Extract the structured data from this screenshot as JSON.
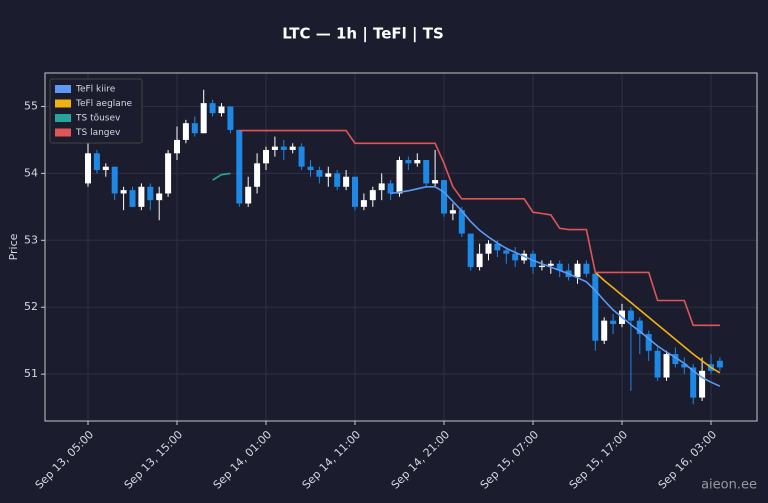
{
  "chart_data": {
    "type": "candlestick",
    "title": "LTC — 1h  |  TeFl  |  TS",
    "ylabel": "Price",
    "watermark": "aieon.ee",
    "x": [
      "Sep 13, 05:00",
      "Sep 13, 06:00",
      "Sep 13, 07:00",
      "Sep 13, 08:00",
      "Sep 13, 09:00",
      "Sep 13, 10:00",
      "Sep 13, 11:00",
      "Sep 13, 12:00",
      "Sep 13, 13:00",
      "Sep 13, 14:00",
      "Sep 13, 15:00",
      "Sep 13, 16:00",
      "Sep 13, 17:00",
      "Sep 13, 18:00",
      "Sep 13, 19:00",
      "Sep 13, 20:00",
      "Sep 13, 21:00",
      "Sep 13, 22:00",
      "Sep 13, 23:00",
      "Sep 14, 00:00",
      "Sep 14, 01:00",
      "Sep 14, 02:00",
      "Sep 14, 03:00",
      "Sep 14, 04:00",
      "Sep 14, 05:00",
      "Sep 14, 06:00",
      "Sep 14, 07:00",
      "Sep 14, 08:00",
      "Sep 14, 09:00",
      "Sep 14, 10:00",
      "Sep 14, 11:00",
      "Sep 14, 12:00",
      "Sep 14, 13:00",
      "Sep 14, 14:00",
      "Sep 14, 15:00",
      "Sep 14, 16:00",
      "Sep 14, 17:00",
      "Sep 14, 18:00",
      "Sep 14, 19:00",
      "Sep 14, 20:00",
      "Sep 14, 21:00",
      "Sep 14, 22:00",
      "Sep 14, 23:00",
      "Sep 15, 00:00",
      "Sep 15, 01:00",
      "Sep 15, 02:00",
      "Sep 15, 03:00",
      "Sep 15, 04:00",
      "Sep 15, 05:00",
      "Sep 15, 06:00",
      "Sep 15, 07:00",
      "Sep 15, 08:00",
      "Sep 15, 09:00",
      "Sep 15, 10:00",
      "Sep 15, 11:00",
      "Sep 15, 12:00",
      "Sep 15, 13:00",
      "Sep 15, 14:00",
      "Sep 15, 15:00",
      "Sep 15, 16:00",
      "Sep 15, 17:00",
      "Sep 15, 18:00",
      "Sep 15, 19:00",
      "Sep 15, 20:00",
      "Sep 15, 21:00",
      "Sep 15, 22:00",
      "Sep 15, 23:00",
      "Sep 16, 00:00",
      "Sep 16, 01:00",
      "Sep 16, 02:00",
      "Sep 16, 03:00",
      "Sep 16, 04:00"
    ],
    "open": [
      53.85,
      54.3,
      54.05,
      54.1,
      53.7,
      53.75,
      53.5,
      53.8,
      53.6,
      53.7,
      54.3,
      54.5,
      54.75,
      54.6,
      55.05,
      54.9,
      55.0,
      54.65,
      53.55,
      53.8,
      54.15,
      54.35,
      54.4,
      54.35,
      54.4,
      54.1,
      54.05,
      53.95,
      54.0,
      53.8,
      53.95,
      53.5,
      53.6,
      53.75,
      53.85,
      53.7,
      54.2,
      54.15,
      54.2,
      53.85,
      53.9,
      53.4,
      53.45,
      53.1,
      52.6,
      52.8,
      52.95,
      52.85,
      52.8,
      52.7,
      52.8,
      52.6,
      52.62,
      52.65,
      52.55,
      52.45,
      52.65,
      52.5,
      51.5,
      51.8,
      51.75,
      51.95,
      51.8,
      51.6,
      51.35,
      50.95,
      51.3,
      51.15,
      51.1,
      50.65,
      51.15,
      51.2
    ],
    "high": [
      54.5,
      54.35,
      54.15,
      54.1,
      53.8,
      53.8,
      53.85,
      53.85,
      53.8,
      54.35,
      54.7,
      54.8,
      54.85,
      55.25,
      55.1,
      55.05,
      55.0,
      54.65,
      53.95,
      54.3,
      54.4,
      54.55,
      54.5,
      54.45,
      54.45,
      54.2,
      54.1,
      54.1,
      54.05,
      54.05,
      53.95,
      53.7,
      53.8,
      54.0,
      53.9,
      54.25,
      54.25,
      54.3,
      54.2,
      54.35,
      53.9,
      53.55,
      53.5,
      53.1,
      52.95,
      53.0,
      53.0,
      52.9,
      52.9,
      52.85,
      52.85,
      52.7,
      52.7,
      52.7,
      52.65,
      52.7,
      52.7,
      52.5,
      51.85,
      51.9,
      52.05,
      52.0,
      51.85,
      51.65,
      51.4,
      51.35,
      51.4,
      51.25,
      51.15,
      51.25,
      51.3,
      51.25
    ],
    "low": [
      53.8,
      54.0,
      53.95,
      53.6,
      53.45,
      53.5,
      53.45,
      53.45,
      53.3,
      53.65,
      54.2,
      54.45,
      54.55,
      54.6,
      54.85,
      54.85,
      54.6,
      53.5,
      53.5,
      53.7,
      54.05,
      54.25,
      54.2,
      54.3,
      54.05,
      53.95,
      53.85,
      53.8,
      53.75,
      53.75,
      53.45,
      53.45,
      53.5,
      53.6,
      53.6,
      53.65,
      54.05,
      54.1,
      53.8,
      53.8,
      53.35,
      53.3,
      53.05,
      52.55,
      52.55,
      52.7,
      52.75,
      52.65,
      52.6,
      52.65,
      52.5,
      52.55,
      52.5,
      52.45,
      52.4,
      52.35,
      52.45,
      51.35,
      51.45,
      51.6,
      51.7,
      50.75,
      51.3,
      51.2,
      50.9,
      50.9,
      51.1,
      51.0,
      50.55,
      50.6,
      51.0,
      51.05
    ],
    "close": [
      54.3,
      54.05,
      54.1,
      53.7,
      53.75,
      53.5,
      53.8,
      53.6,
      53.7,
      54.3,
      54.5,
      54.75,
      54.6,
      55.05,
      54.9,
      55.0,
      54.65,
      53.55,
      53.8,
      54.15,
      54.35,
      54.4,
      54.35,
      54.4,
      54.1,
      54.05,
      53.95,
      54.0,
      53.8,
      53.95,
      53.5,
      53.6,
      53.75,
      53.85,
      53.7,
      54.2,
      54.15,
      54.2,
      53.85,
      53.9,
      53.4,
      53.45,
      53.1,
      52.6,
      52.8,
      52.95,
      52.85,
      52.8,
      52.7,
      52.8,
      52.6,
      52.62,
      52.65,
      52.55,
      52.45,
      52.65,
      52.5,
      51.5,
      51.8,
      51.75,
      51.95,
      51.8,
      51.6,
      51.35,
      50.95,
      51.3,
      51.15,
      51.1,
      50.65,
      51.05,
      51.05,
      51.1
    ],
    "up_color": "#ffffff",
    "down_color": "#1e88e5",
    "lines": [
      {
        "name": "TeFl kiire",
        "color": "#5b9bf5",
        "values": [
          null,
          null,
          null,
          null,
          null,
          null,
          null,
          null,
          null,
          null,
          null,
          null,
          null,
          null,
          null,
          null,
          null,
          null,
          null,
          null,
          null,
          null,
          null,
          null,
          null,
          null,
          null,
          null,
          null,
          null,
          null,
          null,
          null,
          null,
          53.7,
          53.72,
          53.74,
          53.77,
          53.8,
          53.8,
          53.72,
          53.58,
          53.44,
          53.28,
          53.15,
          53.05,
          52.96,
          52.88,
          52.82,
          52.76,
          52.7,
          52.65,
          52.6,
          52.55,
          52.5,
          52.44,
          52.38,
          52.25,
          52.1,
          51.96,
          51.85,
          51.74,
          51.64,
          51.53,
          51.42,
          51.33,
          51.25,
          51.16,
          51.05,
          50.95,
          50.88,
          50.82
        ]
      },
      {
        "name": "TeFl aeglane",
        "color": "#f2b20f",
        "values": [
          null,
          null,
          null,
          null,
          null,
          null,
          null,
          null,
          null,
          null,
          null,
          null,
          null,
          null,
          null,
          null,
          null,
          null,
          null,
          null,
          null,
          null,
          null,
          null,
          null,
          null,
          null,
          null,
          null,
          null,
          null,
          null,
          null,
          null,
          null,
          null,
          null,
          null,
          null,
          null,
          null,
          null,
          null,
          null,
          null,
          null,
          null,
          null,
          null,
          null,
          null,
          null,
          null,
          null,
          null,
          null,
          null,
          52.52,
          52.4,
          52.29,
          52.18,
          52.07,
          51.96,
          51.85,
          51.74,
          51.63,
          51.52,
          51.41,
          51.3,
          51.2,
          51.1,
          51.02
        ]
      },
      {
        "name": "TS tõusev",
        "color": "#26a69a",
        "values": [
          null,
          null,
          null,
          null,
          null,
          null,
          null,
          null,
          null,
          null,
          null,
          null,
          null,
          null,
          53.9,
          53.98,
          54.0,
          null,
          null,
          null,
          null,
          null,
          null,
          null,
          null,
          null,
          null,
          null,
          null,
          null,
          null,
          null,
          null,
          null,
          null,
          null,
          null,
          null,
          null,
          null,
          null,
          null,
          null,
          null,
          null,
          null,
          null,
          null,
          null,
          null,
          null,
          null,
          null,
          null,
          null,
          null,
          null,
          null,
          null,
          null,
          null,
          null,
          null,
          null,
          null,
          null,
          null,
          null,
          null,
          null,
          null,
          null
        ]
      },
      {
        "name": "TS langev",
        "color": "#e05555",
        "values": [
          null,
          null,
          null,
          null,
          null,
          null,
          null,
          null,
          null,
          null,
          null,
          null,
          null,
          null,
          null,
          null,
          null,
          54.64,
          54.64,
          54.64,
          54.64,
          54.64,
          54.64,
          54.64,
          54.64,
          54.64,
          54.64,
          54.64,
          54.64,
          54.64,
          54.45,
          54.45,
          54.45,
          54.45,
          54.45,
          54.45,
          54.45,
          54.45,
          54.45,
          54.45,
          54.15,
          53.8,
          53.62,
          53.62,
          53.62,
          53.62,
          53.62,
          53.62,
          53.62,
          53.62,
          53.42,
          53.4,
          53.38,
          53.18,
          53.16,
          53.16,
          53.16,
          52.52,
          52.52,
          52.52,
          52.52,
          52.52,
          52.52,
          52.52,
          52.1,
          52.1,
          52.1,
          52.1,
          51.73,
          51.73,
          51.73,
          51.73
        ]
      }
    ],
    "ylim": [
      50.3,
      55.5
    ],
    "yticks": [
      51,
      52,
      53,
      54,
      55
    ],
    "xticks": [
      "Sep 13, 05:00",
      "Sep 13, 15:00",
      "Sep 14, 01:00",
      "Sep 14, 11:00",
      "Sep 14, 21:00",
      "Sep 15, 07:00",
      "Sep 15, 17:00",
      "Sep 16, 03:00"
    ],
    "grid": true,
    "legend": "upper left"
  }
}
